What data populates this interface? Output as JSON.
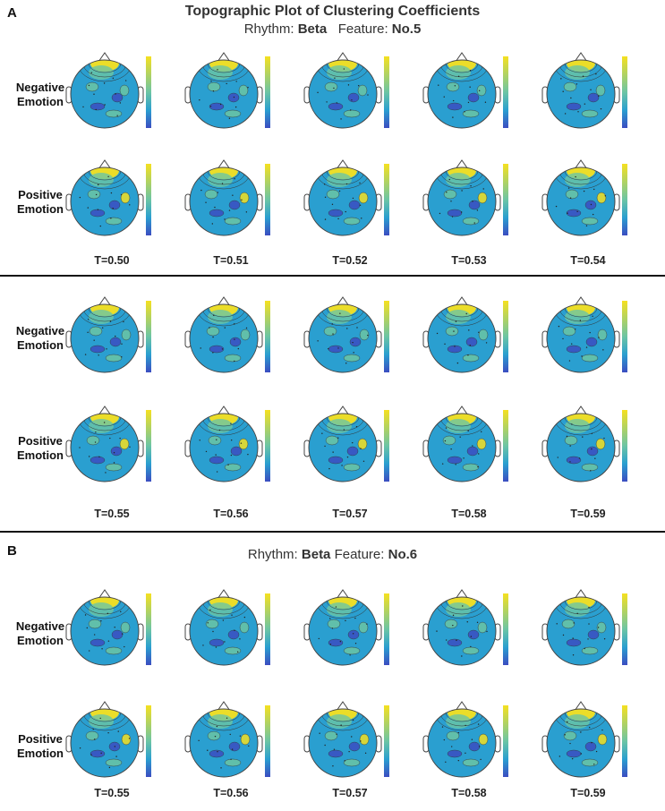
{
  "colors": {
    "scalp": "#2a9fd0",
    "high": "#f5e020",
    "mid": "#6cc5a4",
    "low": "#3b4dc1",
    "contour": "#333333"
  },
  "panel_a": {
    "label": "A",
    "title": "Topographic Plot of Clustering Coefficients",
    "rhythm_prefix": "Rhythm:",
    "rhythm_value": "Beta",
    "feature_prefix": "Feature:",
    "feature_value": "No.5",
    "groups": [
      {
        "rows": [
          {
            "label_line1": "Negative",
            "label_line2": "Emotion"
          },
          {
            "label_line1": "Positive",
            "label_line2": "Emotion"
          }
        ],
        "thresholds": [
          "T=0.50",
          "T=0.51",
          "T=0.52",
          "T=0.53",
          "T=0.54"
        ]
      },
      {
        "rows": [
          {
            "label_line1": "Negative",
            "label_line2": "Emotion"
          },
          {
            "label_line1": "Positive",
            "label_line2": "Emotion"
          }
        ],
        "thresholds": [
          "T=0.55",
          "T=0.56",
          "T=0.57",
          "T=0.58",
          "T=0.59"
        ]
      }
    ]
  },
  "panel_b": {
    "label": "B",
    "rhythm_prefix": "Rhythm:",
    "rhythm_value": "Beta",
    "feature_prefix": "Feature:",
    "feature_value": "No.6",
    "rows": [
      {
        "label_line1": "Negative",
        "label_line2": "Emotion"
      },
      {
        "label_line1": "Positive",
        "label_line2": "Emotion"
      }
    ],
    "thresholds": [
      "T=0.55",
      "T=0.56",
      "T=0.57",
      "T=0.58",
      "T=0.59"
    ]
  }
}
